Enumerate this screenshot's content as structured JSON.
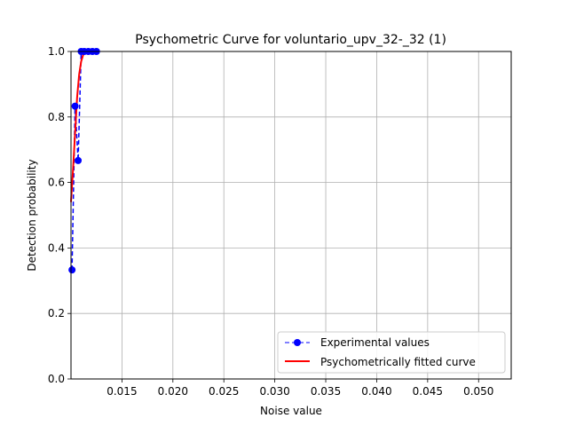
{
  "chart_data": {
    "type": "line",
    "title": "Psychometric Curve for voluntario_upv_32-_32 (1)",
    "xlabel": "Noise value",
    "ylabel": "Detection probability",
    "xlim": [
      0.01,
      0.0532
    ],
    "ylim": [
      0,
      1
    ],
    "xticks": [
      "0.015",
      "0.020",
      "0.025",
      "0.030",
      "0.035",
      "0.040",
      "0.045",
      "0.050"
    ],
    "xtick_values": [
      0.015,
      0.02,
      0.025,
      0.03,
      0.035,
      0.04,
      0.045,
      0.05
    ],
    "yticks": [
      "0.0",
      "0.2",
      "0.4",
      "0.6",
      "0.8",
      "1.0"
    ],
    "ytick_values": [
      0.0,
      0.2,
      0.4,
      0.6,
      0.8,
      1.0
    ],
    "grid": true,
    "legend_position": "lower-right",
    "series": [
      {
        "name": "Experimental values",
        "color": "#0000ff",
        "style": "dashed-markers",
        "x": [
          0.0101,
          0.0104,
          0.0107,
          0.011,
          0.0113,
          0.0117,
          0.0121,
          0.0125
        ],
        "y": [
          0.333,
          0.833,
          0.667,
          1.0,
          1.0,
          1.0,
          1.0,
          1.0
        ]
      },
      {
        "name": "Psychometrically fitted curve",
        "color": "#ff0000",
        "style": "solid",
        "x": [
          0.01,
          0.0102,
          0.0104,
          0.0106,
          0.0108,
          0.011,
          0.0112,
          0.0114,
          0.0116,
          0.0118,
          0.012,
          0.0122,
          0.0124,
          0.0126
        ],
        "y": [
          0.54,
          0.64,
          0.75,
          0.86,
          0.93,
          0.97,
          0.99,
          1.0,
          1.0,
          1.0,
          1.0,
          1.0,
          1.0,
          1.0
        ]
      }
    ]
  }
}
